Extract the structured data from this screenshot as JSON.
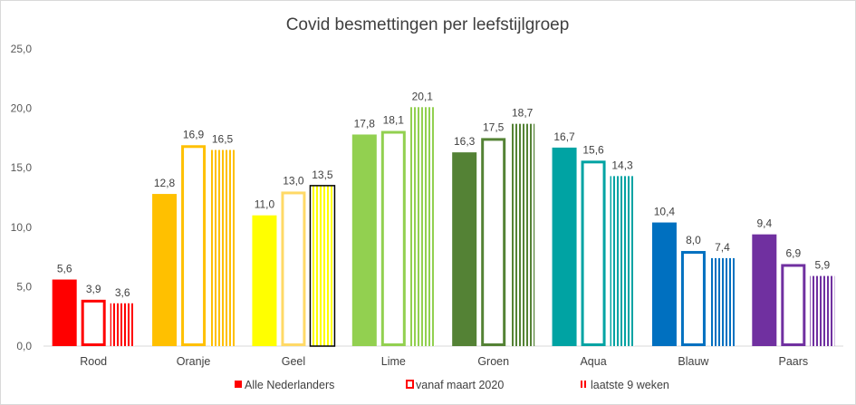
{
  "chart_data": {
    "type": "bar",
    "title": "Covid besmettingen per leefstijlgroep",
    "xlabel": "",
    "ylabel": "",
    "ylim": [
      0,
      25
    ],
    "yticks": [
      "0,0",
      "5,0",
      "10,0",
      "15,0",
      "20,0",
      "25,0"
    ],
    "grid": false,
    "legend_position": "bottom",
    "categories": [
      "Rood",
      "Oranje",
      "Geel",
      "Lime",
      "Groen",
      "Aqua",
      "Blauw",
      "Paars"
    ],
    "colors": [
      "#ff0000",
      "#ffc000",
      "#ffff00",
      "#92d050",
      "#548235",
      "#00a3a3",
      "#0070c0",
      "#7030a0"
    ],
    "outline_colors": [
      "#ff0000",
      "#ffc000",
      "#ffd966",
      "#92d050",
      "#548235",
      "#00a3a3",
      "#0070c0",
      "#7030a0"
    ],
    "series": [
      {
        "name": "Alle Nederlanders",
        "style": "solid",
        "values": [
          5.6,
          12.8,
          11.0,
          17.8,
          16.3,
          16.7,
          10.4,
          9.4
        ],
        "labels": [
          "5,6",
          "12,8",
          "11,0",
          "17,8",
          "16,3",
          "16,7",
          "10,4",
          "9,4"
        ]
      },
      {
        "name": "vanaf maart 2020",
        "style": "outline",
        "values": [
          3.9,
          16.9,
          13.0,
          18.1,
          17.5,
          15.6,
          8.0,
          6.9
        ],
        "labels": [
          "3,9",
          "16,9",
          "13,0",
          "18,1",
          "17,5",
          "15,6",
          "8,0",
          "6,9"
        ]
      },
      {
        "name": "laatste 9 weken",
        "style": "striped",
        "values": [
          3.6,
          16.5,
          13.5,
          20.1,
          18.7,
          14.3,
          7.4,
          5.9
        ],
        "labels": [
          "3,6",
          "16,5",
          "13,5",
          "20,1",
          "18,7",
          "14,3",
          "7,4",
          "5,9"
        ]
      }
    ]
  }
}
